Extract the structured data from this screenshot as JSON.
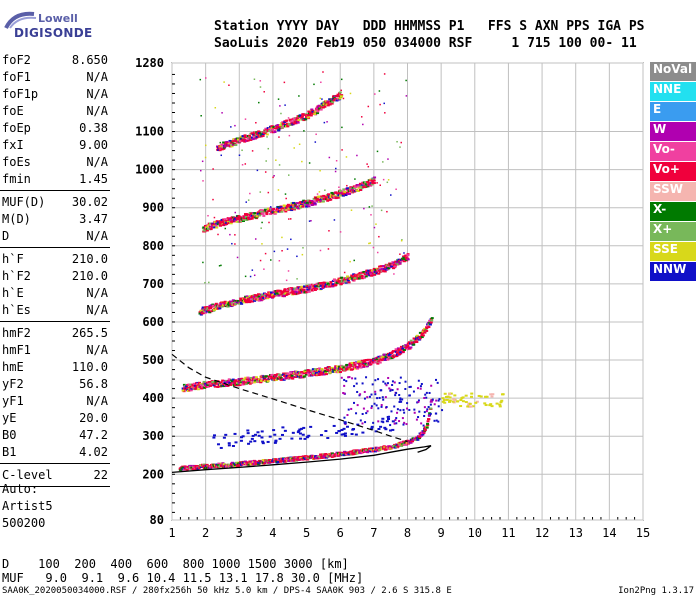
{
  "logo": {
    "line1": "Lowell",
    "line2": "DIGISONDE"
  },
  "header": {
    "line1": "Station YYYY DAY   DDD HHMMSS P1   FFS S AXN PPS IGA PS",
    "line2": "SaoLuis 2020 Feb19 050 034000 RSF     1 715 100 00- 11"
  },
  "params": {
    "group1": [
      {
        "k": "foF2",
        "v": "8.650"
      },
      {
        "k": "foF1",
        "v": "N/A"
      },
      {
        "k": "foF1p",
        "v": "N/A"
      },
      {
        "k": "foE",
        "v": "N/A"
      },
      {
        "k": "foEp",
        "v": "0.38"
      },
      {
        "k": "fxI",
        "v": "9.00"
      },
      {
        "k": "foEs",
        "v": "N/A"
      },
      {
        "k": "fmin",
        "v": "1.45"
      }
    ],
    "group2": [
      {
        "k": "MUF(D)",
        "v": "30.02"
      },
      {
        "k": "M(D)",
        "v": "3.47"
      },
      {
        "k": "D",
        "v": "N/A"
      }
    ],
    "group3": [
      {
        "k": "h`F",
        "v": "210.0"
      },
      {
        "k": "h`F2",
        "v": "210.0"
      },
      {
        "k": "h`E",
        "v": "N/A"
      },
      {
        "k": "h`Es",
        "v": "N/A"
      }
    ],
    "group4": [
      {
        "k": "hmF2",
        "v": "265.5"
      },
      {
        "k": "hmF1",
        "v": "N/A"
      },
      {
        "k": "hmE",
        "v": "110.0"
      },
      {
        "k": "yF2",
        "v": "56.8"
      },
      {
        "k": "yF1",
        "v": "N/A"
      },
      {
        "k": "yE",
        "v": "20.0"
      },
      {
        "k": "B0",
        "v": "47.2"
      },
      {
        "k": "B1",
        "v": "4.02"
      }
    ],
    "group5": [
      {
        "k": "C-level",
        "v": "22"
      }
    ]
  },
  "config": {
    "line1": "Auto:",
    "line2": "Artist5",
    "line3": "500200"
  },
  "legend": [
    {
      "label": "NoVal",
      "color": "#8c8c8c",
      "text": "#ffffff"
    },
    {
      "label": "NNE",
      "color": "#22e0f0",
      "text": "#ffffff"
    },
    {
      "label": "E",
      "color": "#3a9cf0",
      "text": "#ffffff"
    },
    {
      "label": "W",
      "color": "#b000b0",
      "text": "#ffffff"
    },
    {
      "label": "Vo-",
      "color": "#f040a0",
      "text": "#ffffff"
    },
    {
      "label": "Vo+",
      "color": "#f0003c",
      "text": "#ffffff"
    },
    {
      "label": "SSW",
      "color": "#f5b5b0",
      "text": "#ffffff"
    },
    {
      "label": "X-",
      "color": "#007a00",
      "text": "#ffffff"
    },
    {
      "label": "X+",
      "color": "#78b85a",
      "text": "#ffffff"
    },
    {
      "label": "SSE",
      "color": "#d8d81a",
      "text": "#ffffff"
    },
    {
      "label": "NNW",
      "color": "#1010c8",
      "text": "#ffffff"
    }
  ],
  "muf": {
    "line1": "D    100  200  400  600  800 1000 1500 3000 [km]",
    "line2": "MUF   9.0  9.1  9.6 10.4 11.5 13.1 17.8 30.0 [MHz]"
  },
  "footer": {
    "text": "SAA0K_2020050034000.RSF / 280fx256h 50 kHz 5.0 km / DPS-4 SAA0K 903 / 2.6 S 315.8 E",
    "version": "Ion2Png 1.3.17"
  },
  "chart_data": {
    "type": "scatter",
    "xlim": [
      1,
      15
    ],
    "ylim": [
      80,
      1280
    ],
    "x_ticks": [
      "1",
      "2",
      "3",
      "4",
      "5",
      "6",
      "7",
      "8",
      "9",
      "10",
      "11",
      "12",
      "13",
      "14",
      "15"
    ],
    "y_ticks": [
      "80",
      "200",
      "300",
      "400",
      "500",
      "600",
      "700",
      "800",
      "900",
      "1000",
      "1100",
      "1280"
    ],
    "grid": true,
    "traces": [
      {
        "name": "F2 1st hop",
        "color": "#f0003c",
        "points": [
          [
            1.2,
            218
          ],
          [
            2,
            224
          ],
          [
            3,
            230
          ],
          [
            4,
            238
          ],
          [
            5,
            246
          ],
          [
            6,
            256
          ],
          [
            7,
            268
          ],
          [
            7.5,
            275
          ],
          [
            8,
            287
          ],
          [
            8.3,
            300
          ],
          [
            8.55,
            330
          ],
          [
            8.65,
            380
          ],
          [
            8.7,
            420
          ]
        ]
      },
      {
        "name": "F2 2nd hop",
        "color": "#f0003c",
        "points": [
          [
            1.3,
            428
          ],
          [
            2,
            438
          ],
          [
            3,
            446
          ],
          [
            4,
            456
          ],
          [
            5,
            468
          ],
          [
            6,
            480
          ],
          [
            7,
            500
          ],
          [
            7.5,
            516
          ],
          [
            8,
            540
          ],
          [
            8.4,
            570
          ],
          [
            8.7,
            610
          ]
        ]
      },
      {
        "name": "F2 3rd hop",
        "color": "#f0003c",
        "points": [
          [
            1.8,
            630
          ],
          [
            2.5,
            648
          ],
          [
            3,
            658
          ],
          [
            4,
            675
          ],
          [
            5,
            690
          ],
          [
            6,
            710
          ],
          [
            7,
            735
          ],
          [
            7.5,
            750
          ],
          [
            8,
            775
          ]
        ]
      },
      {
        "name": "F2 4th hop",
        "color": "#f0003c",
        "points": [
          [
            1.9,
            848
          ],
          [
            2.5,
            864
          ],
          [
            3,
            875
          ],
          [
            4,
            895
          ],
          [
            5,
            915
          ],
          [
            6,
            940
          ],
          [
            6.5,
            955
          ],
          [
            7,
            975
          ]
        ]
      },
      {
        "name": "F2 5th hop",
        "color": "#f0003c",
        "points": [
          [
            2.3,
            1060
          ],
          [
            3,
            1080
          ],
          [
            4,
            1110
          ],
          [
            5,
            1145
          ],
          [
            6,
            1200
          ]
        ]
      }
    ],
    "profile_solid": [
      [
        1,
        205
      ],
      [
        2,
        212
      ],
      [
        3,
        218
      ],
      [
        4,
        225
      ],
      [
        5,
        232
      ],
      [
        6,
        240
      ],
      [
        7,
        250
      ],
      [
        7.5,
        258
      ],
      [
        8,
        266
      ],
      [
        8.5,
        272
      ],
      [
        8.7,
        275
      ],
      [
        8.55,
        265
      ],
      [
        8.3,
        258
      ]
    ],
    "profile_dashed": [
      [
        1,
        515
      ],
      [
        1.5,
        480
      ],
      [
        2,
        455
      ],
      [
        3,
        425
      ],
      [
        4,
        398
      ],
      [
        5,
        370
      ],
      [
        6,
        343
      ],
      [
        7,
        315
      ],
      [
        7.5,
        300
      ],
      [
        8,
        286
      ]
    ]
  }
}
